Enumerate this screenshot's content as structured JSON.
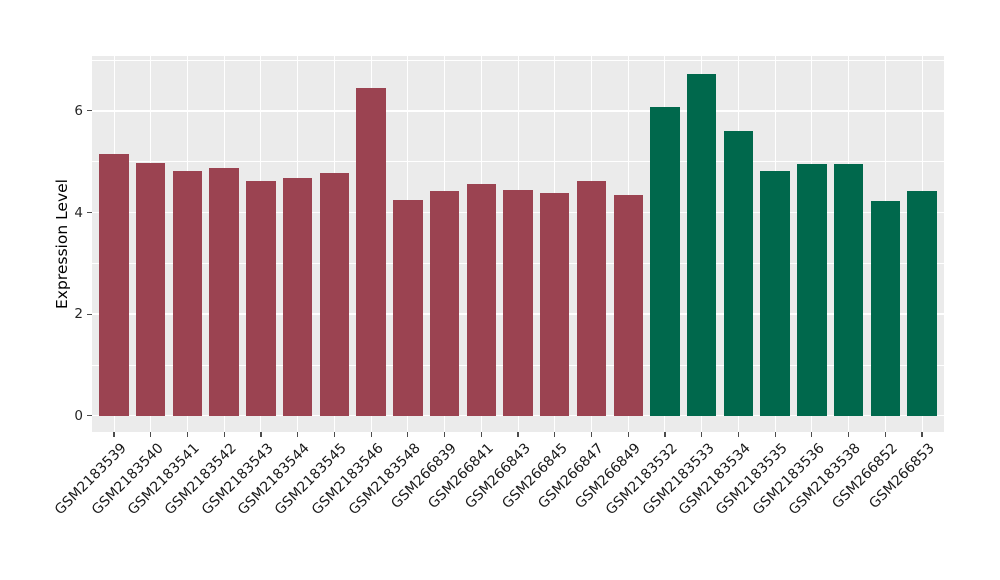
{
  "chart_data": {
    "type": "bar",
    "title": "",
    "xlabel": "",
    "ylabel": "Expression Level",
    "ylim": [
      0,
      7.08
    ],
    "yticks": [
      0,
      2,
      4,
      6
    ],
    "minor_yticks": [
      1,
      3,
      5,
      7
    ],
    "grid": "major and minor, white lines on gray panel",
    "legend_position": "none",
    "panel_background": "#EBEBEB",
    "grid_color": "#FFFFFF",
    "tick_color": "#4D4D4D",
    "categories": [
      "GSM2183539",
      "GSM2183540",
      "GSM2183541",
      "GSM2183542",
      "GSM2183543",
      "GSM2183544",
      "GSM2183545",
      "GSM2183546",
      "GSM2183548",
      "GSM266839",
      "GSM266841",
      "GSM266843",
      "GSM266845",
      "GSM266847",
      "GSM266849",
      "GSM2183532",
      "GSM2183533",
      "GSM2183534",
      "GSM2183535",
      "GSM2183536",
      "GSM2183538",
      "GSM266852",
      "GSM266853"
    ],
    "values": [
      5.15,
      4.97,
      4.82,
      4.88,
      4.62,
      4.68,
      4.78,
      6.45,
      4.25,
      4.42,
      4.57,
      4.45,
      4.38,
      4.62,
      4.35,
      6.08,
      6.72,
      5.6,
      4.82,
      4.96,
      4.96,
      4.22,
      4.42
    ],
    "series": [
      {
        "name": "group-1-maroon",
        "color": "#9B4351",
        "from_index": 0,
        "to_index": 14
      },
      {
        "name": "group-2-green",
        "color": "#00684C",
        "from_index": 15,
        "to_index": 22
      }
    ]
  }
}
